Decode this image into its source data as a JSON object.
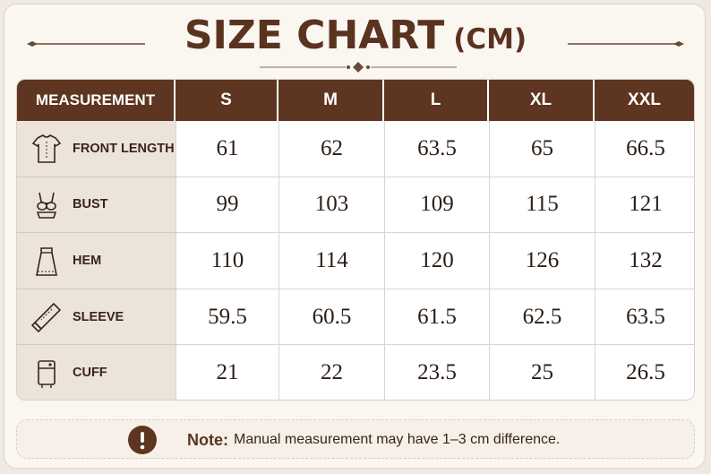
{
  "header": {
    "title": "SIZE CHART",
    "unit": "(CM)"
  },
  "table": {
    "columns": [
      "MEASUREMENT",
      "S",
      "M",
      "L",
      "XL",
      "XXL"
    ],
    "rows": [
      {
        "label": "FRONT LENGTH",
        "values": [
          61,
          62,
          63.5,
          65,
          66.5
        ]
      },
      {
        "label": "BUST",
        "values": [
          99,
          103,
          109,
          115,
          121
        ]
      },
      {
        "label": "HEM",
        "values": [
          110,
          114,
          120,
          126,
          132
        ]
      },
      {
        "label": "SLEEVE",
        "values": [
          59.5,
          60.5,
          61.5,
          62.5,
          63.5
        ]
      },
      {
        "label": "CUFF",
        "values": [
          21,
          22,
          23.5,
          25,
          26.5
        ]
      }
    ]
  },
  "note": {
    "label": "Note:",
    "text": "Manual measurement may have 1–3 cm difference."
  }
}
